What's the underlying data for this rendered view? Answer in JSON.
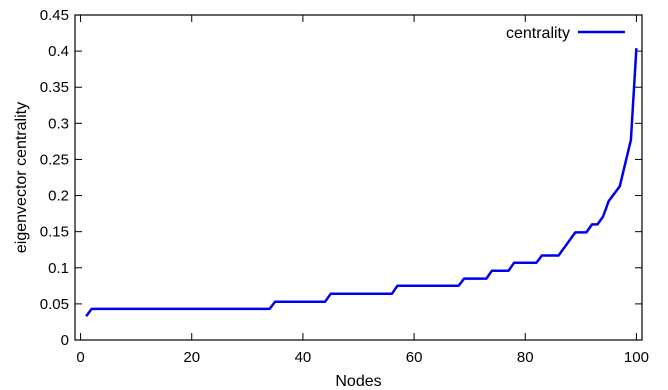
{
  "chart_data": {
    "type": "line",
    "title": "",
    "xlabel": "Nodes",
    "ylabel": "eigenvector centrality",
    "xlim": [
      -1,
      101
    ],
    "ylim": [
      0,
      0.45
    ],
    "x_ticks": [
      0,
      20,
      40,
      60,
      80,
      100
    ],
    "x_tick_labels": [
      "0",
      "20",
      "40",
      "60",
      "80",
      "100"
    ],
    "y_ticks": [
      0,
      0.05,
      0.1,
      0.15,
      0.2,
      0.25,
      0.3,
      0.35,
      0.4,
      0.45
    ],
    "y_tick_labels": [
      "0",
      "0.05",
      "0.1",
      "0.15",
      "0.2",
      "0.25",
      "0.3",
      "0.35",
      "0.4",
      "0.45"
    ],
    "grid": false,
    "legend_position": "top-right",
    "series": [
      {
        "name": "centrality",
        "color": "#0000ee",
        "x": [
          1,
          2,
          34,
          35,
          44,
          45,
          56,
          57,
          68,
          69,
          73,
          74,
          77,
          78,
          82,
          83,
          86,
          89,
          91,
          92,
          93,
          94,
          95,
          97,
          99,
          100
        ],
        "y": [
          0.033,
          0.043,
          0.043,
          0.053,
          0.053,
          0.064,
          0.064,
          0.075,
          0.075,
          0.085,
          0.085,
          0.096,
          0.096,
          0.107,
          0.107,
          0.117,
          0.117,
          0.149,
          0.149,
          0.16,
          0.16,
          0.171,
          0.192,
          0.213,
          0.277,
          0.404
        ]
      }
    ]
  }
}
